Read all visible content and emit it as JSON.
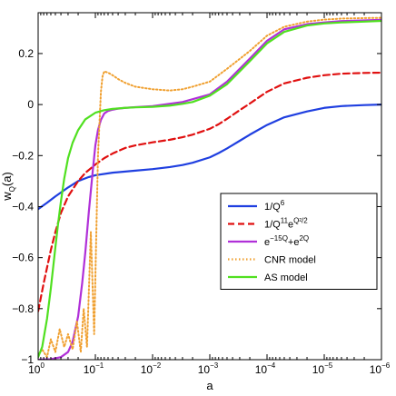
{
  "chart_data": {
    "type": "line",
    "xlabel": "a",
    "ylabel": "w",
    "ylabel_sub": "Q",
    "ylabel_tail": "(a)",
    "x_scale": "log",
    "x_reversed": true,
    "xlim": [
      1,
      1e-06
    ],
    "ylim": [
      -1,
      0.36
    ],
    "grid": false,
    "legend_position": "center-right",
    "yticks": [
      -1,
      -0.8,
      -0.6,
      -0.4,
      -0.2,
      0,
      0.2
    ],
    "ytick_labels": [
      "−1",
      "−0.8",
      "−0.6",
      "−0.4",
      "−0.2",
      "0",
      "0.2"
    ],
    "xticks": [
      {
        "value": 1,
        "base": "10",
        "exp": "0"
      },
      {
        "value": 0.1,
        "base": "10",
        "exp": "−1"
      },
      {
        "value": 0.01,
        "base": "10",
        "exp": "−2"
      },
      {
        "value": 0.001,
        "base": "10",
        "exp": "−3"
      },
      {
        "value": 0.0001,
        "base": "10",
        "exp": "−4"
      },
      {
        "value": 1e-05,
        "base": "10",
        "exp": "−5"
      },
      {
        "value": 1e-06,
        "base": "10",
        "exp": "−6"
      }
    ],
    "series": [
      {
        "name": "1/Q^6",
        "legend": {
          "pre": "1/Q",
          "sup1": "6",
          "mid": "",
          "sup2": ""
        },
        "color": "#1f3fe0",
        "dash": "solid",
        "a": [
          1,
          0.7,
          0.5,
          0.3,
          0.2,
          0.13,
          0.1,
          0.05,
          0.02,
          0.01,
          0.005,
          0.003,
          0.002,
          0.001,
          0.0007,
          0.0005,
          0.0003,
          0.0002,
          0.0001,
          5e-05,
          2e-05,
          1e-05,
          5e-06,
          2e-06,
          1e-06
        ],
        "w": [
          -0.41,
          -0.385,
          -0.36,
          -0.325,
          -0.3,
          -0.284,
          -0.277,
          -0.267,
          -0.259,
          -0.253,
          -0.245,
          -0.237,
          -0.228,
          -0.207,
          -0.19,
          -0.172,
          -0.142,
          -0.118,
          -0.08,
          -0.05,
          -0.027,
          -0.013,
          -0.006,
          -0.002,
          0.0
        ]
      },
      {
        "name": "1/Q^11 e^(Q^2/2)",
        "legend": {
          "pre": "1/Q",
          "sup1": "11",
          "mid": "e",
          "sup2": "Q²/2"
        },
        "color": "#e01010",
        "dash": "dashed",
        "a": [
          1,
          0.8,
          0.6,
          0.5,
          0.4,
          0.3,
          0.2,
          0.15,
          0.1,
          0.07,
          0.05,
          0.03,
          0.02,
          0.01,
          0.005,
          0.003,
          0.002,
          0.001,
          0.0007,
          0.0005,
          0.0003,
          0.0002,
          0.0001,
          5e-05,
          2e-05,
          1e-05,
          5e-06,
          2e-06,
          1e-06
        ],
        "w": [
          -0.81,
          -0.7,
          -0.57,
          -0.5,
          -0.425,
          -0.36,
          -0.3,
          -0.268,
          -0.235,
          -0.21,
          -0.192,
          -0.17,
          -0.16,
          -0.148,
          -0.138,
          -0.128,
          -0.118,
          -0.095,
          -0.077,
          -0.056,
          -0.022,
          0.004,
          0.05,
          0.083,
          0.105,
          0.115,
          0.121,
          0.124,
          0.125
        ]
      },
      {
        "name": "e^(-15Q)+e^(2Q)",
        "legend": {
          "pre": "e",
          "sup1": "−15Q",
          "mid": "+e",
          "sup2": "2Q"
        },
        "color": "#b030d8",
        "dash": "solid",
        "a": [
          1,
          0.6,
          0.4,
          0.3,
          0.25,
          0.2,
          0.17,
          0.15,
          0.13,
          0.11,
          0.1,
          0.09,
          0.08,
          0.07,
          0.06,
          0.05,
          0.04,
          0.03,
          0.02,
          0.01,
          0.003,
          0.001,
          0.0005,
          0.0002,
          0.0001,
          5e-05,
          2e-05,
          1e-05,
          5e-06,
          2e-06,
          1e-06
        ],
        "w": [
          -1.0,
          -0.998,
          -0.99,
          -0.97,
          -0.93,
          -0.83,
          -0.7,
          -0.58,
          -0.42,
          -0.25,
          -0.16,
          -0.1,
          -0.06,
          -0.035,
          -0.025,
          -0.02,
          -0.016,
          -0.013,
          -0.01,
          -0.006,
          0.01,
          0.04,
          0.09,
          0.18,
          0.25,
          0.295,
          0.315,
          0.322,
          0.327,
          0.33,
          0.332
        ]
      },
      {
        "name": "CNR model",
        "legend": {
          "pre": "CNR model",
          "sup1": "",
          "mid": "",
          "sup2": ""
        },
        "color": "#f0a030",
        "dash": "dotted",
        "a": [
          1,
          0.85,
          0.7,
          0.6,
          0.5,
          0.42,
          0.35,
          0.3,
          0.25,
          0.21,
          0.18,
          0.16,
          0.14,
          0.12,
          0.105,
          0.09,
          0.08,
          0.075,
          0.07,
          0.06,
          0.05,
          0.04,
          0.03,
          0.02,
          0.01,
          0.005,
          0.003,
          0.002,
          0.001,
          0.0005,
          0.0002,
          0.0001,
          5e-05,
          2e-05,
          1e-05,
          5e-06,
          2e-06,
          1e-06
        ],
        "w": [
          -0.98,
          -0.96,
          -0.99,
          -0.92,
          -0.97,
          -0.88,
          -0.95,
          -0.9,
          -0.96,
          -0.85,
          -0.97,
          -0.8,
          -0.95,
          -0.5,
          -0.9,
          -0.2,
          0.05,
          0.11,
          0.13,
          0.125,
          0.115,
          0.1,
          0.085,
          0.07,
          0.06,
          0.055,
          0.06,
          0.07,
          0.09,
          0.14,
          0.21,
          0.27,
          0.305,
          0.325,
          0.333,
          0.337,
          0.339,
          0.34
        ]
      },
      {
        "name": "AS model",
        "legend": {
          "pre": "AS model",
          "sup1": "",
          "mid": "",
          "sup2": ""
        },
        "color": "#50e020",
        "dash": "solid",
        "a": [
          1,
          0.85,
          0.7,
          0.6,
          0.5,
          0.45,
          0.4,
          0.35,
          0.3,
          0.25,
          0.2,
          0.15,
          0.1,
          0.07,
          0.05,
          0.03,
          0.02,
          0.01,
          0.005,
          0.003,
          0.002,
          0.001,
          0.0005,
          0.0002,
          0.0001,
          5e-05,
          2e-05,
          1e-05,
          5e-06,
          2e-06,
          1e-06
        ],
        "w": [
          -0.99,
          -0.95,
          -0.84,
          -0.72,
          -0.56,
          -0.47,
          -0.38,
          -0.29,
          -0.21,
          -0.15,
          -0.1,
          -0.058,
          -0.032,
          -0.022,
          -0.017,
          -0.013,
          -0.011,
          -0.009,
          -0.004,
          0.003,
          0.01,
          0.035,
          0.08,
          0.17,
          0.24,
          0.285,
          0.31,
          0.318,
          0.322,
          0.325,
          0.328
        ]
      }
    ]
  }
}
